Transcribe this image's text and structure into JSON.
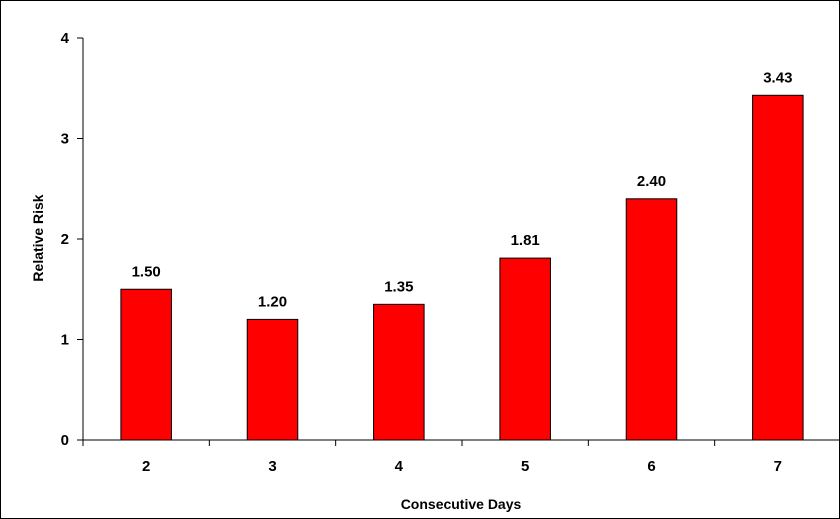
{
  "chart_data": {
    "type": "bar",
    "title": "",
    "xlabel": "Consecutive Days",
    "ylabel": "Relative Risk",
    "categories": [
      "2",
      "3",
      "4",
      "5",
      "6",
      "7"
    ],
    "values": [
      1.5,
      1.2,
      1.35,
      1.81,
      2.4,
      3.43
    ],
    "value_labels": [
      "1.50",
      "1.20",
      "1.35",
      "1.81",
      "2.40",
      "3.43"
    ],
    "ylim": [
      0,
      4
    ],
    "yticks": [
      "0",
      "1",
      "2",
      "3",
      "4"
    ],
    "grid": false,
    "legend": "none",
    "bar_color": "#ff0000",
    "bar_edge_color": "#000000"
  }
}
